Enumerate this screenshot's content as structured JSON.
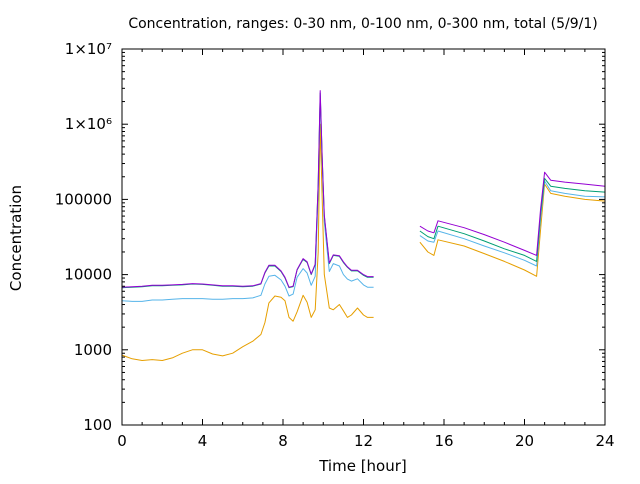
{
  "chart_data": {
    "type": "line",
    "title": "Concentration, ranges: 0-30 nm, 0-100 nm, 0-300 nm, total (5/9/1)",
    "xlabel": "Time [hour]",
    "ylabel": "Concentration",
    "xlim": [
      0,
      24
    ],
    "ylim": [
      100,
      10000000
    ],
    "y_scale": "log",
    "grid": false,
    "legend": "none",
    "x_ticks": [
      0,
      4,
      8,
      12,
      16,
      20,
      24
    ],
    "x_tick_labels": [
      "0",
      "4",
      "8",
      "12",
      "16",
      "20",
      "24"
    ],
    "y_ticks": [
      100,
      1000,
      10000,
      100000,
      1000000,
      10000000
    ],
    "y_tick_labels": [
      "100",
      "1000",
      "10000",
      "100000",
      "1×10⁶",
      "1×10⁷"
    ],
    "series": [
      {
        "color": "#e69f00",
        "x": [
          0,
          0.5,
          1,
          1.5,
          2,
          2.5,
          3,
          3.5,
          4,
          4.5,
          5,
          5.5,
          6,
          6.5,
          6.9,
          7.1,
          7.3,
          7.6,
          7.9,
          8.1,
          8.3,
          8.5,
          8.7,
          9.0,
          9.2,
          9.4,
          9.6,
          9.75,
          9.85,
          9.95,
          10.05,
          10.3,
          10.5,
          10.8,
          11.0,
          11.2,
          11.4,
          11.7,
          12.0,
          12.2,
          12.5,
          14.8,
          15.2,
          15.5,
          15.7,
          17,
          18,
          19,
          20,
          20.6,
          20.8,
          21.0,
          21.3,
          22,
          23,
          24
        ],
        "y": [
          850,
          760,
          720,
          740,
          720,
          780,
          900,
          1000,
          1000,
          880,
          830,
          900,
          1100,
          1300,
          1600,
          2300,
          4200,
          5200,
          5000,
          4500,
          2700,
          2400,
          3200,
          5300,
          4300,
          2700,
          3400,
          20000,
          1000000,
          100000,
          10000,
          3600,
          3400,
          4000,
          3300,
          2700,
          2900,
          3600,
          2900,
          2700,
          2700,
          27000,
          20000,
          18000,
          29000,
          24000,
          19000,
          15000,
          11500,
          9500,
          40000,
          160000,
          120000,
          110000,
          100000,
          95000
        ]
      },
      {
        "color": "#56b4e9",
        "x": [
          0,
          0.5,
          1,
          1.5,
          2,
          2.5,
          3,
          3.5,
          4,
          4.5,
          5,
          5.5,
          6,
          6.5,
          6.9,
          7.1,
          7.3,
          7.6,
          7.9,
          8.1,
          8.3,
          8.5,
          8.7,
          9.0,
          9.2,
          9.4,
          9.6,
          9.75,
          9.85,
          9.95,
          10.05,
          10.3,
          10.5,
          10.8,
          11.0,
          11.2,
          11.4,
          11.7,
          12.0,
          12.2,
          12.5,
          14.8,
          15.2,
          15.5,
          15.7,
          17,
          18,
          19,
          20,
          20.6,
          20.8,
          21.0,
          21.3,
          22,
          23,
          24
        ],
        "y": [
          4500,
          4400,
          4400,
          4600,
          4600,
          4700,
          4800,
          4800,
          4800,
          4700,
          4700,
          4800,
          4800,
          4900,
          5300,
          7500,
          9500,
          9800,
          8500,
          7000,
          5200,
          5500,
          9200,
          12000,
          10500,
          7200,
          9500,
          120000,
          2400000,
          300000,
          50000,
          11000,
          14000,
          13000,
          10000,
          8700,
          8200,
          8800,
          7300,
          6800,
          6800,
          33000,
          28000,
          27000,
          38000,
          30000,
          24000,
          19500,
          15500,
          13000,
          56000,
          175000,
          130000,
          120000,
          110000,
          108000
        ]
      },
      {
        "color": "#009e73",
        "x": [
          0,
          0.5,
          1,
          1.5,
          2,
          2.5,
          3,
          3.5,
          4,
          4.5,
          5,
          5.5,
          6,
          6.5,
          6.9,
          7.1,
          7.3,
          7.6,
          7.9,
          8.1,
          8.3,
          8.5,
          8.7,
          9.0,
          9.2,
          9.4,
          9.6,
          9.75,
          9.85,
          9.95,
          10.05,
          10.3,
          10.5,
          10.8,
          11.0,
          11.2,
          11.4,
          11.7,
          12.0,
          12.2,
          12.5,
          14.8,
          15.2,
          15.5,
          15.7,
          17,
          18,
          19,
          20,
          20.6,
          20.8,
          21.0,
          21.3,
          22,
          23,
          24
        ],
        "y": [
          6700,
          6800,
          6900,
          7100,
          7100,
          7200,
          7300,
          7500,
          7400,
          7200,
          7000,
          7000,
          6900,
          7000,
          7500,
          10500,
          13000,
          13000,
          11000,
          9000,
          6700,
          6900,
          11500,
          16000,
          14500,
          10000,
          13500,
          160000,
          2600000,
          350000,
          60000,
          14000,
          18000,
          17500,
          14500,
          12500,
          11200,
          11200,
          9800,
          9200,
          9200,
          38000,
          32000,
          30000,
          44000,
          35000,
          28000,
          22000,
          18000,
          15000,
          65000,
          190000,
          150000,
          140000,
          130000,
          125000
        ]
      },
      {
        "color": "#9400d3",
        "x": [
          0,
          0.5,
          1,
          1.5,
          2,
          2.5,
          3,
          3.5,
          4,
          4.5,
          5,
          5.5,
          6,
          6.5,
          6.9,
          7.1,
          7.3,
          7.6,
          7.9,
          8.1,
          8.3,
          8.5,
          8.7,
          9.0,
          9.2,
          9.4,
          9.6,
          9.75,
          9.85,
          9.95,
          10.05,
          10.3,
          10.5,
          10.8,
          11.0,
          11.2,
          11.4,
          11.7,
          12.0,
          12.2,
          12.5,
          14.8,
          15.2,
          15.5,
          15.7,
          17,
          18,
          19,
          20,
          20.6,
          20.8,
          21.0,
          21.3,
          22,
          23,
          24
        ],
        "y": [
          6800,
          6900,
          7000,
          7200,
          7200,
          7300,
          7400,
          7600,
          7500,
          7300,
          7100,
          7100,
          7000,
          7100,
          7600,
          10700,
          13300,
          13300,
          11200,
          9200,
          6800,
          7000,
          11700,
          16300,
          14800,
          10200,
          13800,
          165000,
          2800000,
          360000,
          62000,
          14300,
          18300,
          17800,
          14800,
          12700,
          11400,
          11400,
          10000,
          9400,
          9400,
          44000,
          38000,
          36000,
          52000,
          42000,
          34000,
          27000,
          21000,
          18000,
          75000,
          230000,
          180000,
          170000,
          160000,
          150000
        ]
      }
    ]
  }
}
